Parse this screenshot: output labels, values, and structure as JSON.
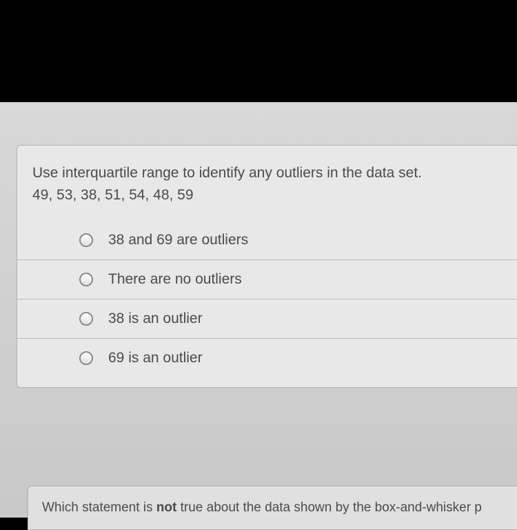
{
  "colors": {
    "background_black": "#000000",
    "screen_bg": "#d0d0d0",
    "card_bg": "#e8e8e8",
    "card_border": "#b0b0b0",
    "divider": "#bababa",
    "text": "#4a4a4a",
    "radio_border": "#8a8a8a"
  },
  "question": {
    "prompt_line1": "Use interquartile range to identify any outliers in the data set.",
    "prompt_line2": "49, 53, 38, 51, 54, 48, 59",
    "options": [
      "38 and 69 are outliers",
      "There are no outliers",
      "38 is an outlier",
      "69 is an outlier"
    ]
  },
  "next_question": {
    "prefix": "Which statement is ",
    "bold": "not",
    "suffix": " true about the data shown by the box-and-whisker p"
  },
  "typography": {
    "question_fontsize": 21,
    "option_fontsize": 21,
    "next_fontsize": 19
  }
}
